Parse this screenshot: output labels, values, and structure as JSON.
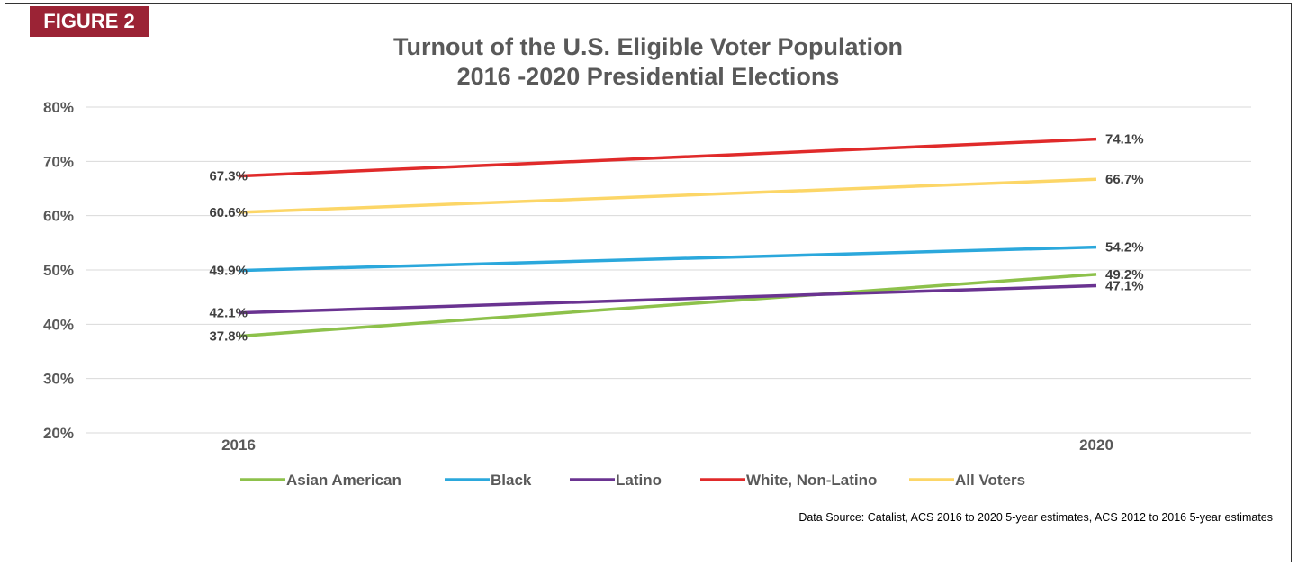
{
  "figure_label": "FIGURE 2",
  "source_note": "Data Source: Catalist, ACS 2016 to 2020 5-year estimates,  ACS 2012 to 2016 5-year estimates",
  "chart_data": {
    "type": "line",
    "title": "Turnout of the U.S. Eligible Voter Population",
    "subtitle": "2016 -2020 Presidential Elections",
    "categories": [
      "2016",
      "2020"
    ],
    "ylim": [
      20,
      80
    ],
    "yticks": [
      20,
      30,
      40,
      50,
      60,
      70,
      80
    ],
    "ytick_labels": [
      "20%",
      "30%",
      "40%",
      "50%",
      "60%",
      "70%",
      "80%"
    ],
    "grid": true,
    "legend_position": "bottom",
    "series": [
      {
        "name": "Asian American",
        "values": [
          37.8,
          49.2
        ],
        "labels": [
          "37.8%",
          "49.2%"
        ],
        "color": "#8dc14b"
      },
      {
        "name": "Black",
        "values": [
          49.9,
          54.2
        ],
        "labels": [
          "49.9%",
          "54.2%"
        ],
        "color": "#2ba8dc"
      },
      {
        "name": "Latino",
        "values": [
          42.1,
          47.1
        ],
        "labels": [
          "42.1%",
          "47.1%"
        ],
        "color": "#6a3391"
      },
      {
        "name": "White, Non-Latino",
        "values": [
          67.3,
          74.1
        ],
        "labels": [
          "67.3%",
          "74.1%"
        ],
        "color": "#e02a2a"
      },
      {
        "name": "All Voters",
        "values": [
          60.6,
          66.7
        ],
        "labels": [
          "60.6%",
          "66.7%"
        ],
        "color": "#fcd667"
      }
    ]
  }
}
